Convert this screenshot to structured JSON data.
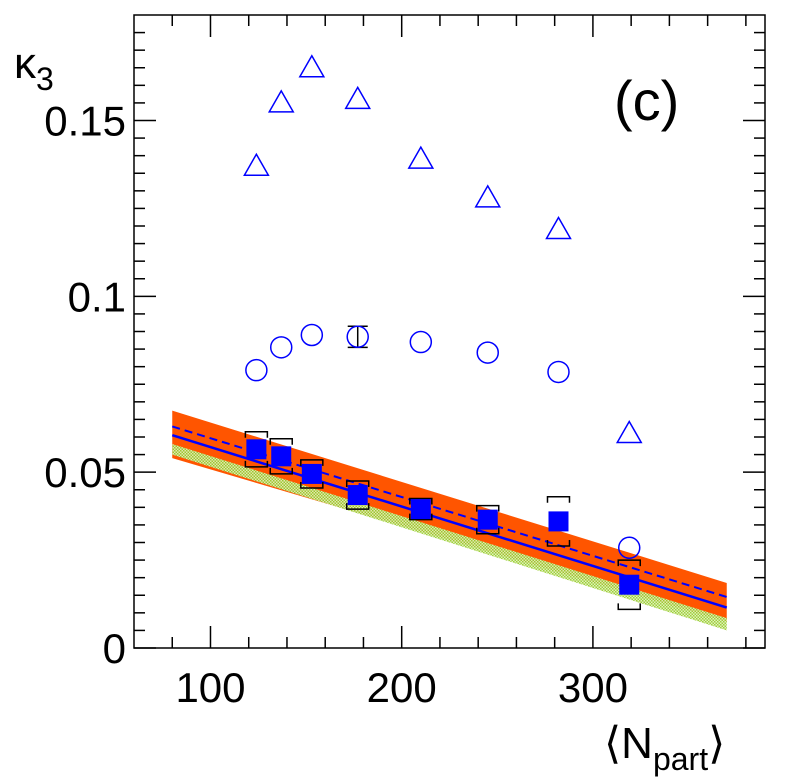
{
  "chart_data": {
    "type": "scatter",
    "panel_label": "(c)",
    "ylabel": "κ",
    "ylabel_sub": "3",
    "xlabel": "⟨N",
    "xlabel_sub": "part",
    "xlabel_close": "⟩",
    "xlim": [
      60,
      390
    ],
    "ylim": [
      0,
      0.18
    ],
    "x_ticks": [
      100,
      200,
      300
    ],
    "x_tick_labels": [
      "100",
      "200",
      "300"
    ],
    "y_ticks": [
      0,
      0.05,
      0.1,
      0.15
    ],
    "y_tick_labels": [
      "0",
      "0.05",
      "0.1",
      "0.15"
    ],
    "colors": {
      "series": "#0000ff",
      "orange_band": "#ff5500",
      "green_band": "#99cc33",
      "syst_box": "#000000",
      "axis": "#000000"
    },
    "series": [
      {
        "name": "open triangles",
        "marker": "open-triangle",
        "x": [
          124,
          137,
          153,
          177,
          210,
          245,
          282,
          319
        ],
        "y": [
          0.137,
          0.155,
          0.165,
          0.156,
          0.139,
          0.128,
          0.119,
          0.061
        ]
      },
      {
        "name": "open circles",
        "marker": "open-circle",
        "x": [
          124,
          137,
          153,
          177,
          210,
          245,
          282,
          319
        ],
        "y": [
          0.079,
          0.0855,
          0.089,
          0.0885,
          0.087,
          0.084,
          0.0785,
          0.0285
        ],
        "err": [
          0,
          0,
          0,
          0.003,
          0,
          0,
          0,
          0
        ]
      },
      {
        "name": "filled squares",
        "marker": "filled-square",
        "x": [
          124,
          137,
          153,
          177,
          210,
          245,
          282,
          319
        ],
        "y": [
          0.0565,
          0.0545,
          0.0495,
          0.0435,
          0.0395,
          0.0365,
          0.036,
          0.018
        ],
        "syst": [
          0.005,
          0.005,
          0.004,
          0.004,
          0.003,
          0.004,
          0.007,
          0.007
        ],
        "err": [
          0.001,
          0.001,
          0.001,
          0.001,
          0.001,
          0.001,
          0.001,
          0.001
        ]
      }
    ],
    "fit_solid": {
      "x": [
        80,
        370
      ],
      "y": [
        0.0605,
        0.0115
      ]
    },
    "fit_dashed": {
      "x": [
        80,
        370
      ],
      "y": [
        0.063,
        0.0145
      ]
    },
    "orange_band": {
      "x": [
        80,
        370
      ],
      "y_low": [
        0.054,
        0.0075
      ],
      "y_high": [
        0.0675,
        0.0185
      ]
    },
    "green_band": {
      "x": [
        80,
        370
      ],
      "y_low": [
        0.055,
        0.005
      ],
      "y_high": [
        0.058,
        0.0085
      ]
    }
  }
}
